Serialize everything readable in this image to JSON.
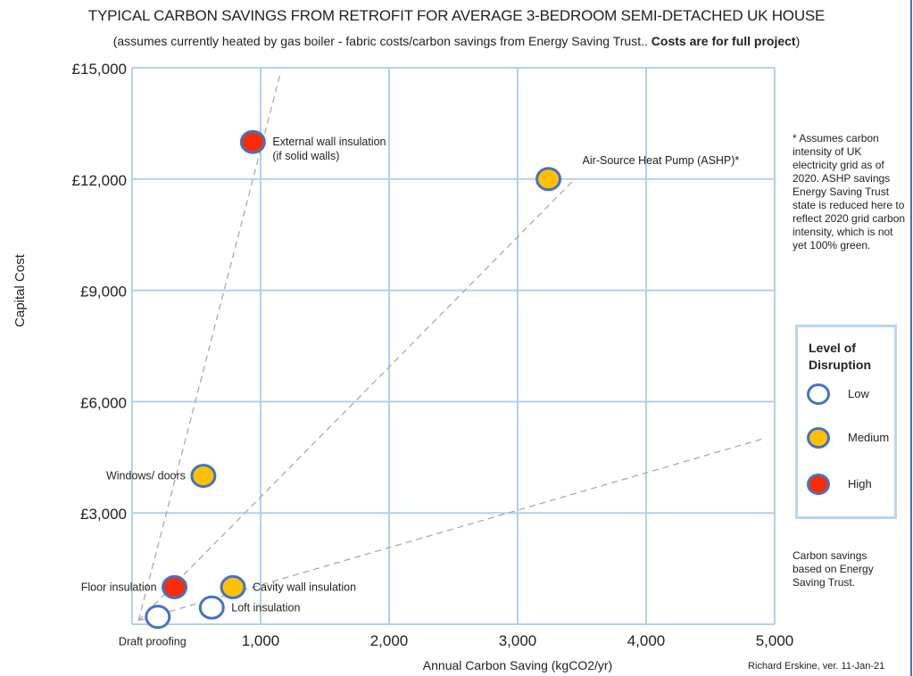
{
  "chart_data": {
    "type": "scatter",
    "title": "TYPICAL CARBON SAVINGS FROM RETROFIT FOR AVERAGE 3-BEDROOM SEMI-DETACHED UK HOUSE",
    "subtitle_plain": "(assumes currently heated by gas boiler - fabric costs/carbon savings from Energy Saving Trust.. ",
    "subtitle_bold": "Costs are for full project",
    "subtitle_end": ")",
    "xlabel": "Annual Carbon Saving (kgCO2/yr)",
    "ylabel": "Capital Cost",
    "xlim": [
      0,
      5000
    ],
    "ylim": [
      0,
      15000
    ],
    "x_ticks": [
      {
        "value": 1000,
        "label": "1,000"
      },
      {
        "value": 2000,
        "label": "2,000"
      },
      {
        "value": 3000,
        "label": "3,000"
      },
      {
        "value": 4000,
        "label": "4,000"
      },
      {
        "value": 5000,
        "label": "5,000"
      }
    ],
    "y_ticks": [
      {
        "value": 3000,
        "label": "£3,000"
      },
      {
        "value": 6000,
        "label": "£6,000"
      },
      {
        "value": 9000,
        "label": "£9,000"
      },
      {
        "value": 12000,
        "label": "£12,000"
      },
      {
        "value": 15000,
        "label": "£15,000"
      }
    ],
    "grid": true,
    "points": [
      {
        "label": "Draft proofing",
        "x": 200,
        "y": 200,
        "disruption": "Low",
        "label_position": "below"
      },
      {
        "label": "Floor insulation",
        "x": 330,
        "y": 1000,
        "disruption": "High",
        "label_position": "left"
      },
      {
        "label": "Loft insulation",
        "x": 620,
        "y": 450,
        "disruption": "Low",
        "label_position": "right"
      },
      {
        "label": "Cavity wall insulation",
        "x": 785,
        "y": 1000,
        "disruption": "Medium",
        "label_position": "right"
      },
      {
        "label": "Windows/ doors",
        "x": 555,
        "y": 4000,
        "disruption": "Medium",
        "label_position": "left"
      },
      {
        "label": "External wall insulation\n(if solid walls)",
        "x": 940,
        "y": 13000,
        "disruption": "High",
        "label_position": "right"
      },
      {
        "label": "Air-Source Heat Pump (ASHP)*",
        "x": 3240,
        "y": 12000,
        "disruption": "Medium",
        "label_position": "upper-right"
      }
    ],
    "reference_lines": [
      {
        "from": [
          50,
          100
        ],
        "to": [
          1150,
          14800
        ]
      },
      {
        "from": [
          50,
          100
        ],
        "to": [
          3430,
          11950
        ]
      },
      {
        "from": [
          50,
          100
        ],
        "to": [
          4910,
          5000
        ]
      }
    ],
    "legend": {
      "title_line1": "Level of",
      "title_line2": "Disruption",
      "placement": "right",
      "items": [
        {
          "label": "Low",
          "color": "#ffffff"
        },
        {
          "label": "Medium",
          "color": "#ffc000"
        },
        {
          "label": "High",
          "color": "#ff2a00"
        }
      ]
    },
    "colors": {
      "marker_outline": "#4472c4",
      "grid": "#b4cfec",
      "reference_line": "#aaaaaa",
      "Low": "#ffffff",
      "Medium": "#ffc000",
      "High": "#ff2a00"
    }
  },
  "notes": {
    "ashp_note": "* Assumes carbon intensity of UK electricity grid as of 2020. ASHP savings Energy Saving Trust state is reduced here to reflect 2020 grid carbon intensity, which is not yet 100% green.",
    "source_note": "Carbon savings based on Energy Saving Trust.",
    "credit": "Richard Erskine,  ver. 11-Jan-21"
  }
}
